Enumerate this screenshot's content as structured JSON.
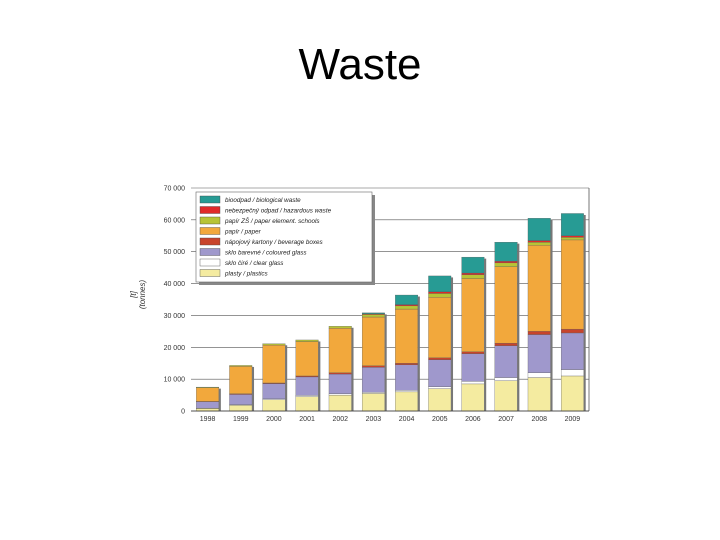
{
  "slide": {
    "title": "Waste"
  },
  "chart_data": {
    "type": "bar",
    "stacked": true,
    "categories": [
      "1998",
      "1999",
      "2000",
      "2001",
      "2002",
      "2003",
      "2004",
      "2005",
      "2006",
      "2007",
      "2008",
      "2009"
    ],
    "ylabel": "[t]\n(tonnes)",
    "ylim": [
      0,
      70000
    ],
    "yticks": [
      0,
      10000,
      20000,
      30000,
      40000,
      50000,
      60000,
      70000
    ],
    "ytick_labels": [
      "0",
      "10 000",
      "20 000",
      "30 000",
      "40 000",
      "50 000",
      "60 000",
      "70 000"
    ],
    "grid": true,
    "legend_position": "top-left",
    "series": [
      {
        "name": "plasty / plastics",
        "color": "#f4eba0",
        "values": [
          800,
          1800,
          3500,
          4500,
          5000,
          5500,
          6000,
          7000,
          8500,
          9500,
          10500,
          11000
        ]
      },
      {
        "name": "sklo čiré / clear glass",
        "color": "#ffffff",
        "values": [
          100,
          200,
          300,
          400,
          400,
          400,
          500,
          600,
          800,
          1000,
          1500,
          2000
        ]
      },
      {
        "name": "sklo barevné / coloured glass",
        "color": "#9f98cc",
        "values": [
          2000,
          3200,
          4800,
          5800,
          6200,
          7800,
          8000,
          8500,
          8700,
          10000,
          12000,
          11500
        ]
      },
      {
        "name": "nápojový kartony / beverage boxes",
        "color": "#c8432c",
        "values": [
          100,
          200,
          200,
          300,
          400,
          500,
          500,
          600,
          600,
          800,
          1000,
          1200
        ]
      },
      {
        "name": "papír / paper",
        "color": "#f2a83c",
        "values": [
          4300,
          8600,
          11900,
          10800,
          14000,
          15300,
          17000,
          19000,
          23000,
          24000,
          27000,
          28000
        ]
      },
      {
        "name": "papír ZŠ / paper element. schools",
        "color": "#b7c436",
        "values": [
          200,
          300,
          400,
          500,
          600,
          800,
          1000,
          1200,
          1200,
          1200,
          1000,
          800
        ]
      },
      {
        "name": "nebezpečný odpad / hazardous waste",
        "color": "#e02a2a",
        "values": [
          0,
          0,
          0,
          0,
          0,
          200,
          400,
          500,
          500,
          500,
          500,
          500
        ]
      },
      {
        "name": "bioodpad / biological waste",
        "color": "#279b94",
        "values": [
          0,
          0,
          0,
          0,
          0,
          300,
          3000,
          5000,
          5000,
          6000,
          7000,
          7000
        ]
      }
    ]
  }
}
